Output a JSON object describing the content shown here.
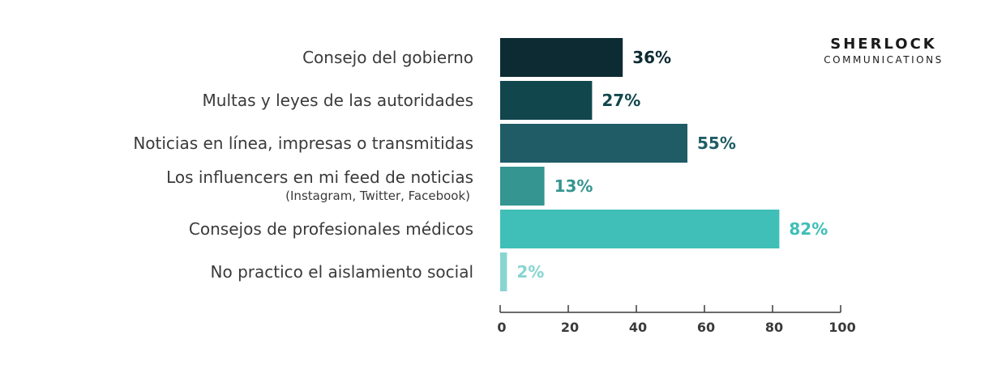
{
  "chart_data": {
    "type": "bar",
    "orientation": "horizontal",
    "categories": [
      "Consejo del gobierno",
      "Multas y leyes de las autoridades",
      "Noticias en línea, impresas o transmitidas",
      "Los influencers en mi feed de noticias",
      "Consejos de profesionales médicos",
      "No practico el aislamiento social"
    ],
    "sublabels": [
      "",
      "",
      "",
      "(Instagram, Twitter, Facebook)",
      "",
      ""
    ],
    "values": [
      36,
      27,
      55,
      13,
      82,
      2
    ],
    "value_labels": [
      "36%",
      "27%",
      "55%",
      "13%",
      "82%",
      "2%"
    ],
    "colors": [
      "#0d2b32",
      "#12464d",
      "#1f5c66",
      "#359590",
      "#3fbfb7",
      "#88d5d0"
    ],
    "xlim": [
      0,
      100
    ],
    "xticks": [
      "0",
      "20",
      "40",
      "60",
      "80",
      "100"
    ],
    "grid": false,
    "legend": "none"
  },
  "logo": {
    "line1": "SHERLOCK",
    "line2": "COMMUNICATIONS"
  }
}
